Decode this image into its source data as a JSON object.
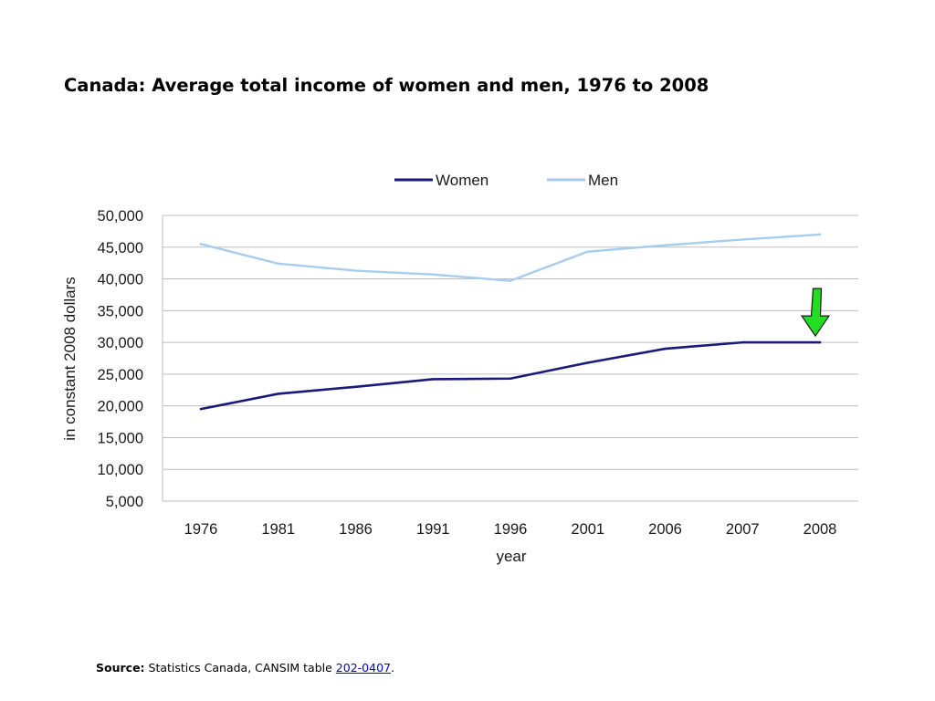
{
  "title": "Canada:  Average total income of women and men, 1976 to 2008",
  "source": {
    "label": "Source:",
    "text": " Statistics Canada, CANSIM table ",
    "link_text": "202-0407",
    "suffix": "."
  },
  "chart_data": {
    "type": "line",
    "title": "",
    "categories": [
      "1976",
      "1981",
      "1986",
      "1991",
      "1996",
      "2001",
      "2006",
      "2007",
      "2008"
    ],
    "series": [
      {
        "name": "Women",
        "color": "#1a1a7a",
        "values": [
          19500,
          21900,
          23000,
          24200,
          24300,
          26800,
          29000,
          30000,
          30000
        ]
      },
      {
        "name": "Men",
        "color": "#a6cdee",
        "values": [
          45500,
          42400,
          41300,
          40700,
          39700,
          44300,
          45300,
          46200,
          47000
        ]
      }
    ],
    "xlabel": "year",
    "ylabel": "in constant 2008 dollars",
    "ylim": [
      5000,
      50000
    ],
    "yticks": [
      "50,000",
      "45,000",
      "40,000",
      "35,000",
      "30,000",
      "25,000",
      "20,000",
      "15,000",
      "10,000",
      "5,000"
    ],
    "grid": true,
    "legend_position": "top-center",
    "annotation": {
      "type": "arrow",
      "color": "#22dd22",
      "target_category": "2008",
      "target_series": "Women"
    }
  }
}
